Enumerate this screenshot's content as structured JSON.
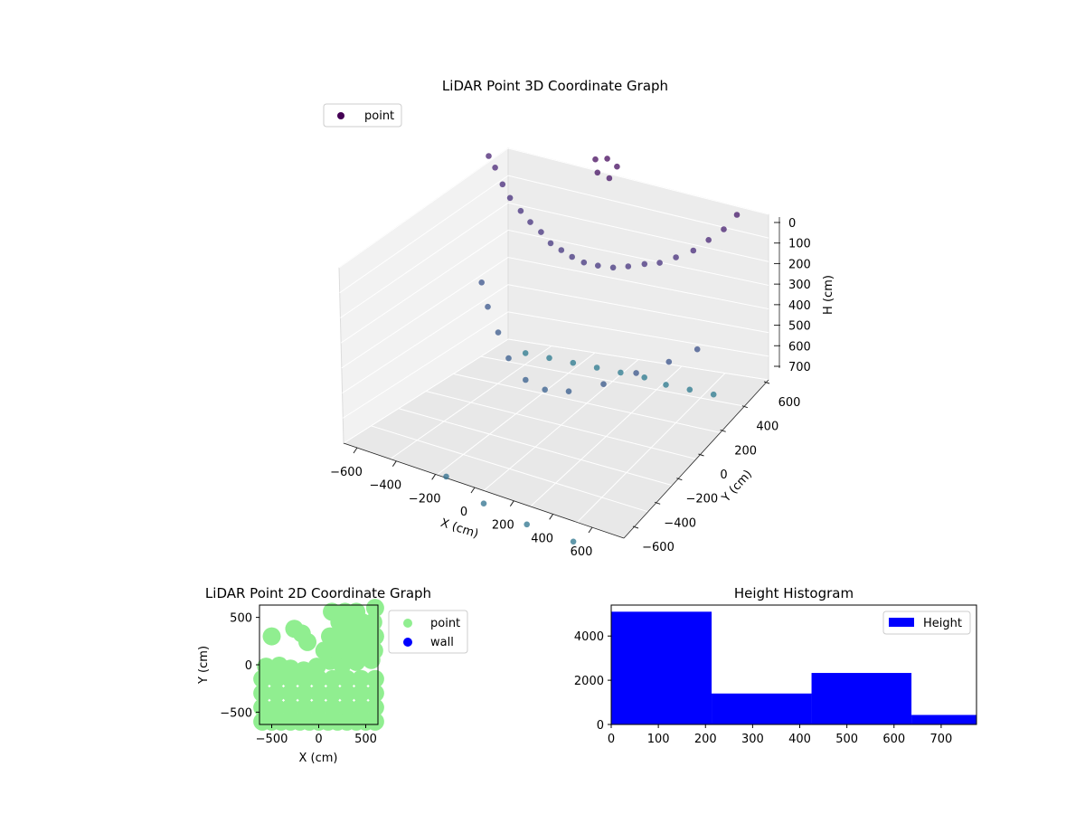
{
  "chart_data": [
    {
      "type": "scatter",
      "title": "LiDAR Point 3D Coordinate Graph",
      "xlabel": "X (cm)",
      "ylabel": "Y (cm)",
      "zlabel": "H (cm)",
      "x_ticks": [
        "−600",
        "−400",
        "−200",
        "0",
        "200",
        "400",
        "600"
      ],
      "y_ticks": [
        "−600",
        "−400",
        "−200",
        "0",
        "200",
        "400",
        "600"
      ],
      "z_ticks": [
        "0",
        "100",
        "200",
        "300",
        "400",
        "500",
        "600",
        "700"
      ],
      "xlim": [
        -650,
        650
      ],
      "ylim": [
        -650,
        650
      ],
      "zlim": [
        0,
        780
      ],
      "legend": {
        "entries": [
          "point"
        ],
        "placement": "upper-left"
      },
      "colormap": "viridis",
      "series": [
        {
          "name": "point",
          "description_color": "#440154",
          "points": [
            {
              "x": -560,
              "y": 480,
              "z": 180
            },
            {
              "x": -520,
              "y": 460,
              "z": 200
            },
            {
              "x": -470,
              "y": 430,
              "z": 230
            },
            {
              "x": -420,
              "y": 400,
              "z": 250
            },
            {
              "x": -360,
              "y": 380,
              "z": 270
            },
            {
              "x": -300,
              "y": 350,
              "z": 280
            },
            {
              "x": -240,
              "y": 330,
              "z": 290
            },
            {
              "x": -180,
              "y": 300,
              "z": 300
            },
            {
              "x": -120,
              "y": 280,
              "z": 300
            },
            {
              "x": -60,
              "y": 260,
              "z": 300
            },
            {
              "x": 0,
              "y": 250,
              "z": 300
            },
            {
              "x": 60,
              "y": 260,
              "z": 300
            },
            {
              "x": 120,
              "y": 280,
              "z": 300
            },
            {
              "x": 180,
              "y": 300,
              "z": 290
            },
            {
              "x": 240,
              "y": 330,
              "z": 280
            },
            {
              "x": 300,
              "y": 350,
              "z": 270
            },
            {
              "x": 360,
              "y": 380,
              "z": 250
            },
            {
              "x": 420,
              "y": 420,
              "z": 230
            },
            {
              "x": 470,
              "y": 460,
              "z": 200
            },
            {
              "x": 520,
              "y": 500,
              "z": 170
            },
            {
              "x": 560,
              "y": 540,
              "z": 130
            },
            {
              "x": -500,
              "y": 300,
              "z": 500
            },
            {
              "x": -420,
              "y": 200,
              "z": 520
            },
            {
              "x": -320,
              "y": 100,
              "z": 540
            },
            {
              "x": -220,
              "y": 0,
              "z": 560
            },
            {
              "x": -100,
              "y": -80,
              "z": 570
            },
            {
              "x": 0,
              "y": -100,
              "z": 570
            },
            {
              "x": 100,
              "y": -80,
              "z": 560
            },
            {
              "x": 220,
              "y": 0,
              "z": 540
            },
            {
              "x": 320,
              "y": 100,
              "z": 520
            },
            {
              "x": 420,
              "y": 200,
              "z": 500
            },
            {
              "x": 500,
              "y": 300,
              "z": 480
            },
            {
              "x": -50,
              "y": 450,
              "z": 60
            },
            {
              "x": 0,
              "y": 460,
              "z": 50
            },
            {
              "x": 40,
              "y": 470,
              "z": 70
            },
            {
              "x": -30,
              "y": 430,
              "z": 90
            },
            {
              "x": 20,
              "y": 440,
              "z": 100
            },
            {
              "x": -400,
              "y": 500,
              "z": 780
            },
            {
              "x": -300,
              "y": 520,
              "z": 780
            },
            {
              "x": -200,
              "y": 540,
              "z": 780
            },
            {
              "x": -100,
              "y": 560,
              "z": 780
            },
            {
              "x": 0,
              "y": 580,
              "z": 780
            },
            {
              "x": 100,
              "y": 600,
              "z": 780
            },
            {
              "x": 200,
              "y": 600,
              "z": 780
            },
            {
              "x": 300,
              "y": 620,
              "z": 780
            },
            {
              "x": 400,
              "y": 640,
              "z": 780
            },
            {
              "x": -200,
              "y": -600,
              "z": 700
            },
            {
              "x": 0,
              "y": -650,
              "z": 720
            },
            {
              "x": 200,
              "y": -650,
              "z": 740
            },
            {
              "x": 400,
              "y": -620,
              "z": 760
            }
          ]
        }
      ]
    },
    {
      "type": "scatter",
      "title": "LiDAR Point 2D Coordinate Graph",
      "xlabel": "X (cm)",
      "ylabel": "Y (cm)",
      "x_ticks": [
        "−500",
        "0",
        "500"
      ],
      "y_ticks": [
        "500",
        "0",
        "−500"
      ],
      "xlim": [
        -630,
        630
      ],
      "ylim": [
        -630,
        630
      ],
      "legend": {
        "entries": [
          "point",
          "wall"
        ],
        "placement": "outside-right"
      },
      "series": [
        {
          "name": "point",
          "color": "#90ee90",
          "region": "dense point cloud covering most of the lower half and right side"
        },
        {
          "name": "wall",
          "color": "#0000ff",
          "points": []
        }
      ]
    },
    {
      "type": "bar",
      "title": "Height Histogram",
      "legend": {
        "entries": [
          "Height"
        ],
        "placement": "top-right"
      },
      "x_ticks": [
        "0",
        "100",
        "200",
        "300",
        "400",
        "500",
        "600",
        "700"
      ],
      "y_ticks": [
        "0",
        "2000",
        "4000"
      ],
      "xlim": [
        0,
        775
      ],
      "ylim": [
        0,
        5400
      ],
      "color": "#0000ff",
      "bins": [
        {
          "start": 0,
          "end": 213,
          "count": 5100
        },
        {
          "start": 213,
          "end": 425,
          "count": 1400
        },
        {
          "start": 425,
          "end": 637,
          "count": 2330
        },
        {
          "start": 637,
          "end": 775,
          "count": 430
        }
      ]
    }
  ]
}
